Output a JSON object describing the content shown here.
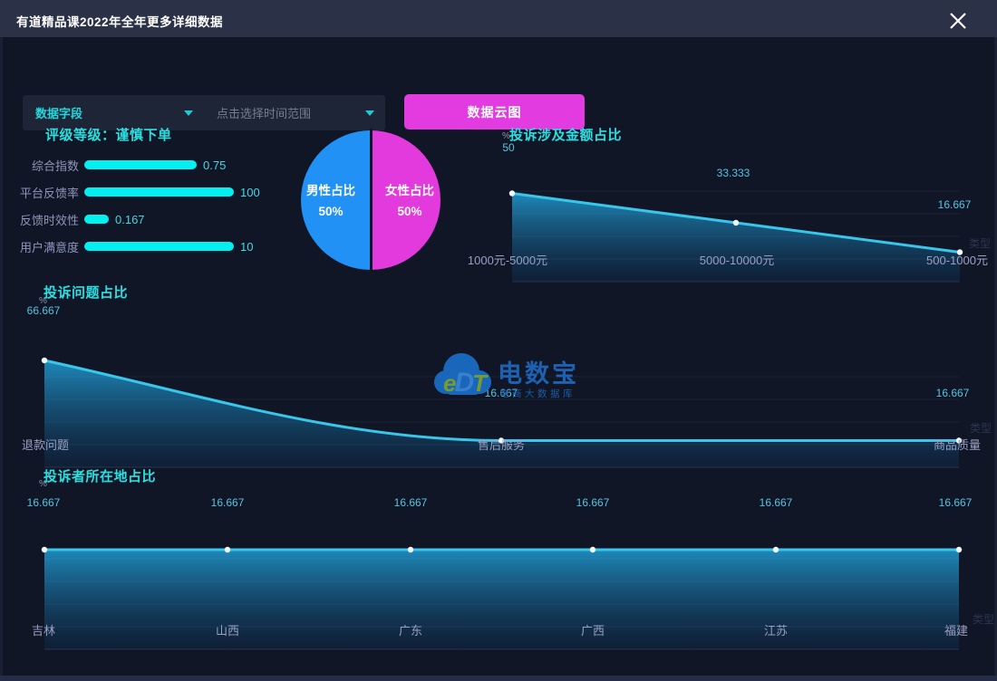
{
  "window": {
    "title": "有道精品课2022年全年更多详细数据"
  },
  "toolbar": {
    "field_dropdown_label": "数据字段",
    "time_range_placeholder": "点击选择时间范围",
    "cloud_button_label": "数据云图"
  },
  "rating": {
    "title": "评级等级：谨慎下单",
    "metrics": [
      {
        "label": "综合指数",
        "value": "0.75",
        "ratio": 0.75
      },
      {
        "label": "平台反馈率",
        "value": "100",
        "ratio": 1
      },
      {
        "label": "反馈时效性",
        "value": "0.167",
        "ratio": 0.163
      },
      {
        "label": "用户满意度",
        "value": "10",
        "ratio": 1
      }
    ]
  },
  "gender_pie": {
    "slices": [
      {
        "label": "男性占比",
        "percent": "50%",
        "value": 50,
        "color": "#2191f5"
      },
      {
        "label": "女性占比",
        "percent": "50%",
        "value": 50,
        "color": "#e33add"
      }
    ]
  },
  "charts": {
    "amount": {
      "title": "投诉涉及金额占比",
      "y_unit": "%",
      "x_axis_name": "类型",
      "categories": [
        "1000元-5000元",
        "5000-10000元",
        "500-1000元"
      ],
      "values": [
        50,
        33.333,
        16.667
      ],
      "value_labels": [
        "50",
        "33.333",
        "16.667"
      ]
    },
    "issues": {
      "title": "投诉问题占比",
      "y_unit": "%",
      "x_axis_name": "类型",
      "categories": [
        "退款问题",
        "售后服务",
        "商品质量"
      ],
      "values": [
        66.667,
        16.667,
        16.667
      ],
      "value_labels": [
        "66.667",
        "16.667",
        "16.667"
      ]
    },
    "locations": {
      "title": "投诉者所在地占比",
      "y_unit": "%",
      "x_axis_name": "类型",
      "categories": [
        "吉林",
        "山西",
        "广东",
        "广西",
        "江苏",
        "福建"
      ],
      "values": [
        16.667,
        16.667,
        16.667,
        16.667,
        16.667,
        16.667
      ],
      "value_labels": [
        "16.667",
        "16.667",
        "16.667",
        "16.667",
        "16.667",
        "16.667"
      ]
    }
  },
  "chart_data": [
    {
      "type": "bar",
      "title": "评级等级：谨慎下单",
      "categories": [
        "综合指数",
        "平台反馈率",
        "反馈时效性",
        "用户满意度"
      ],
      "values": [
        0.75,
        100,
        0.167,
        10
      ]
    },
    {
      "type": "pie",
      "categories": [
        "男性占比",
        "女性占比"
      ],
      "values": [
        50,
        50
      ]
    },
    {
      "type": "area",
      "title": "投诉涉及金额占比",
      "ylabel": "%",
      "xlabel": "类型",
      "categories": [
        "1000元-5000元",
        "5000-10000元",
        "500-1000元"
      ],
      "values": [
        50,
        33.333,
        16.667
      ]
    },
    {
      "type": "area",
      "title": "投诉问题占比",
      "ylabel": "%",
      "xlabel": "类型",
      "categories": [
        "退款问题",
        "售后服务",
        "商品质量"
      ],
      "values": [
        66.667,
        16.667,
        16.667
      ]
    },
    {
      "type": "area",
      "title": "投诉者所在地占比",
      "ylabel": "%",
      "xlabel": "类型",
      "categories": [
        "吉林",
        "山西",
        "广东",
        "广西",
        "江苏",
        "福建"
      ],
      "values": [
        16.667,
        16.667,
        16.667,
        16.667,
        16.667,
        16.667
      ]
    }
  ],
  "watermark": {
    "logo_text_e": "e",
    "logo_text_d": "D",
    "logo_text_t": "T",
    "brand": "电数宝",
    "subtitle": "电商大数据库"
  },
  "colors": {
    "accent_cyan": "#2ae0e2",
    "line": "#38c6ea",
    "bar": "#04f0f0",
    "button_magenta": "#e23ce0",
    "pie_blue": "#2191f5",
    "pie_magenta": "#e33add"
  }
}
